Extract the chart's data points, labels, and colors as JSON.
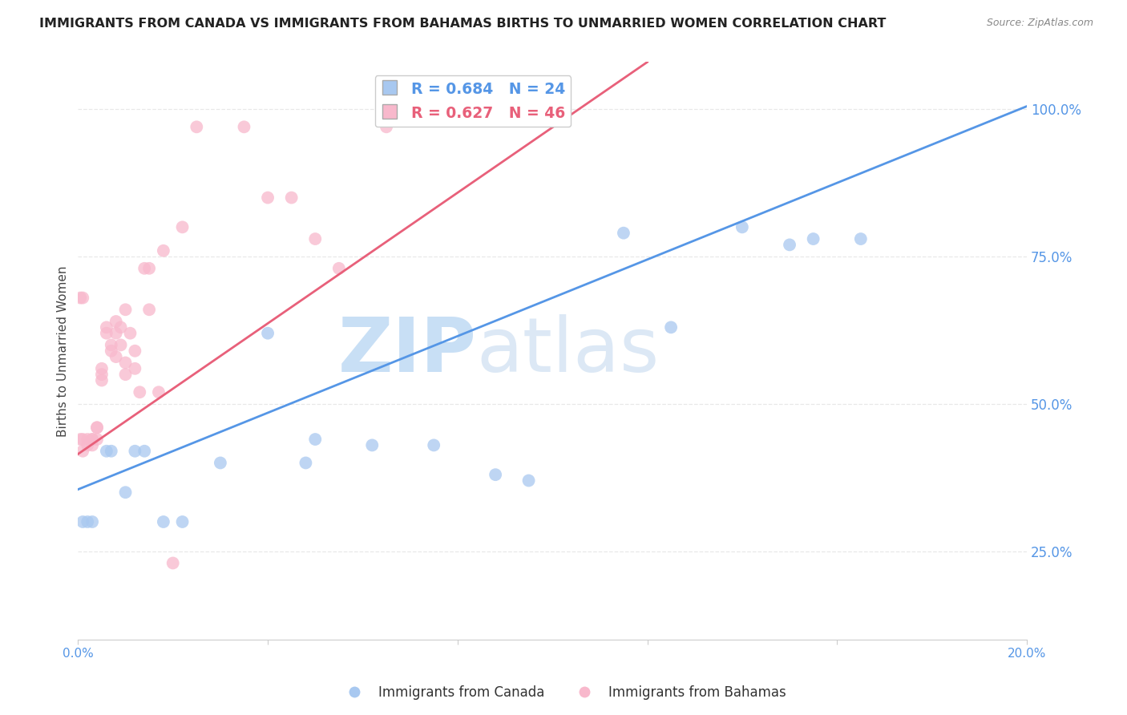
{
  "title": "IMMIGRANTS FROM CANADA VS IMMIGRANTS FROM BAHAMAS BIRTHS TO UNMARRIED WOMEN CORRELATION CHART",
  "source": "Source: ZipAtlas.com",
  "ylabel_left": "Births to Unmarried Women",
  "x_min": 0.0,
  "x_max": 0.2,
  "y_min": 0.1,
  "y_max": 1.08,
  "yticks_right": [
    0.25,
    0.5,
    0.75,
    1.0
  ],
  "ytick_labels_right": [
    "25.0%",
    "50.0%",
    "75.0%",
    "100.0%"
  ],
  "xticks": [
    0.0,
    0.04,
    0.08,
    0.12,
    0.16,
    0.2
  ],
  "canada_color": "#a8c8f0",
  "bahamas_color": "#f8b8cc",
  "canada_line_color": "#5596e6",
  "bahamas_line_color": "#e8607a",
  "R_canada": 0.684,
  "N_canada": 24,
  "R_bahamas": 0.627,
  "N_bahamas": 46,
  "canada_x": [
    0.001,
    0.003,
    0.006,
    0.007,
    0.01,
    0.012,
    0.014,
    0.018,
    0.022,
    0.03,
    0.04,
    0.048,
    0.062,
    0.075,
    0.088,
    0.095,
    0.115,
    0.14,
    0.155,
    0.165,
    0.125,
    0.15,
    0.002,
    0.05
  ],
  "canada_y": [
    0.3,
    0.3,
    0.42,
    0.42,
    0.35,
    0.42,
    0.42,
    0.3,
    0.3,
    0.4,
    0.62,
    0.4,
    0.43,
    0.43,
    0.38,
    0.37,
    0.79,
    0.8,
    0.78,
    0.78,
    0.63,
    0.77,
    0.3,
    0.44
  ],
  "bahamas_x": [
    0.0005,
    0.001,
    0.001,
    0.002,
    0.002,
    0.003,
    0.003,
    0.003,
    0.004,
    0.004,
    0.004,
    0.005,
    0.005,
    0.005,
    0.006,
    0.006,
    0.007,
    0.007,
    0.008,
    0.008,
    0.008,
    0.009,
    0.009,
    0.01,
    0.01,
    0.011,
    0.012,
    0.012,
    0.013,
    0.014,
    0.015,
    0.017,
    0.018,
    0.022,
    0.025,
    0.035,
    0.04,
    0.045,
    0.05,
    0.055,
    0.065,
    0.0005,
    0.001,
    0.02,
    0.01,
    0.015
  ],
  "bahamas_y": [
    0.44,
    0.44,
    0.42,
    0.44,
    0.43,
    0.44,
    0.43,
    0.44,
    0.44,
    0.46,
    0.46,
    0.56,
    0.55,
    0.54,
    0.63,
    0.62,
    0.6,
    0.59,
    0.58,
    0.62,
    0.64,
    0.63,
    0.6,
    0.55,
    0.57,
    0.62,
    0.56,
    0.59,
    0.52,
    0.73,
    0.73,
    0.52,
    0.76,
    0.8,
    0.97,
    0.97,
    0.85,
    0.85,
    0.78,
    0.73,
    0.97,
    0.68,
    0.68,
    0.23,
    0.66,
    0.66
  ],
  "canada_line_x0": 0.0,
  "canada_line_x1": 0.2,
  "canada_line_y0": 0.355,
  "canada_line_y1": 1.005,
  "bahamas_line_x0": 0.0,
  "bahamas_line_x1": 0.12,
  "bahamas_line_y0": 0.415,
  "bahamas_line_y1": 1.08,
  "watermark_zip": "ZIP",
  "watermark_atlas": "atlas",
  "watermark_color": "#c8dff5",
  "grid_color": "#e8e8e8",
  "background_color": "#ffffff",
  "axis_color": "#5596e6",
  "title_color": "#222222",
  "legend_label_canada": "Immigrants from Canada",
  "legend_label_bahamas": "Immigrants from Bahamas"
}
